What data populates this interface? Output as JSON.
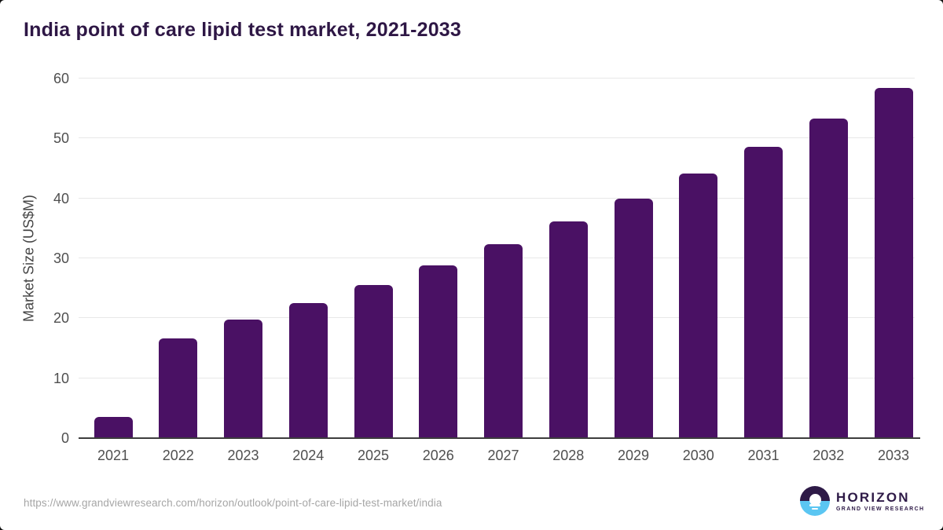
{
  "chart_data": {
    "type": "bar",
    "title": "India point of care lipid test market, 2021-2033",
    "categories": [
      "2021",
      "2022",
      "2023",
      "2024",
      "2025",
      "2026",
      "2027",
      "2028",
      "2029",
      "2030",
      "2031",
      "2032",
      "2033"
    ],
    "values": [
      3.6,
      16.6,
      19.8,
      22.6,
      25.6,
      28.8,
      32.4,
      36.1,
      40.0,
      44.1,
      48.6,
      53.3,
      58.4
    ],
    "xlabel": "",
    "ylabel": "Market Size (US$M)",
    "ylim": [
      0,
      60
    ],
    "yticks": [
      0,
      10,
      20,
      30,
      40,
      50,
      60
    ],
    "grid": true,
    "legend": false,
    "bar_color": "#4a1164"
  },
  "footer": {
    "source_url": "https://www.grandviewresearch.com/horizon/outlook/point-of-care-lipid-test-market/india",
    "logo": {
      "brand": "HORIZON",
      "tagline": "GRAND VIEW RESEARCH"
    }
  },
  "colors": {
    "background": "#ffffff",
    "title_text": "#2e1745",
    "bar_fill": "#4a1164",
    "grid_line": "#e8e8e8",
    "axis_line": "#3d3d3d",
    "tick_text": "#4f4f4f",
    "axis_label_text": "#454545",
    "url_text": "#a6a6a6",
    "logo_purple": "#2e1a47",
    "logo_blue": "#5bc6f2"
  }
}
